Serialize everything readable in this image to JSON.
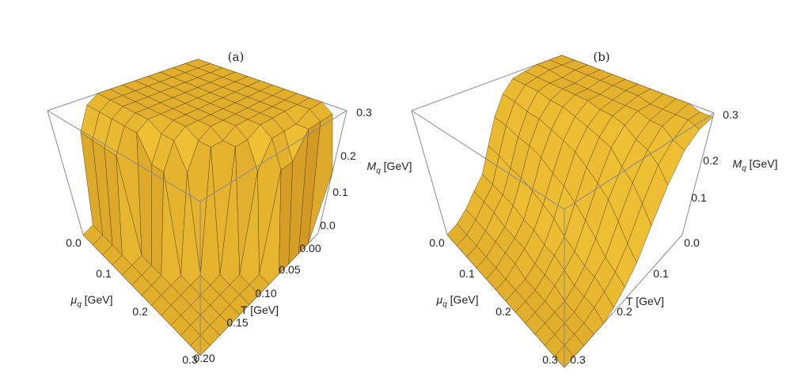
{
  "chart_data": [
    {
      "type": "surface",
      "title": "(a)",
      "xlabel_symbol": "μ",
      "xlabel_sub": "q",
      "xlabel_unit": "[GeV]",
      "ylabel": "T [GeV]",
      "zlabel_symbol": "M",
      "zlabel_sub": "q",
      "zlabel_unit": "[GeV]",
      "xlim": [
        0,
        0.3
      ],
      "ylim": [
        0,
        0.2
      ],
      "zlim": [
        0,
        0.3
      ],
      "xticks": [
        "0.0",
        "0.1",
        "0.2",
        "0.3"
      ],
      "yticks": [
        "0.00",
        "0.05",
        "0.10",
        "0.15",
        "0.20"
      ],
      "zticks": [
        "0.0",
        "0.1",
        "0.2",
        "0.3"
      ],
      "surface_color": "#f5a623",
      "mu_values": [
        0,
        0.025,
        0.05,
        0.075,
        0.1,
        0.125,
        0.15,
        0.175,
        0.2,
        0.225,
        0.25,
        0.275,
        0.3
      ],
      "T_values": [
        0,
        0.0167,
        0.0333,
        0.05,
        0.0667,
        0.0833,
        0.1,
        0.1167,
        0.1333,
        0.15,
        0.1667,
        0.1833,
        0.2
      ],
      "M_grid": [
        [
          0.3,
          0.3,
          0.3,
          0.3,
          0.3,
          0.3,
          0.3,
          0.3,
          0.3,
          0.3,
          0.3,
          0.28,
          0.15
        ],
        [
          0.3,
          0.3,
          0.3,
          0.3,
          0.3,
          0.3,
          0.3,
          0.3,
          0.3,
          0.3,
          0.3,
          0.28,
          0
        ],
        [
          0.3,
          0.3,
          0.3,
          0.3,
          0.3,
          0.3,
          0.3,
          0.3,
          0.3,
          0.3,
          0.28,
          0.28,
          0
        ],
        [
          0.3,
          0.3,
          0.3,
          0.3,
          0.3,
          0.3,
          0.3,
          0.3,
          0.3,
          0.3,
          0.28,
          0.22,
          0
        ],
        [
          0.3,
          0.3,
          0.3,
          0.3,
          0.3,
          0.3,
          0.3,
          0.3,
          0.3,
          0.3,
          0.28,
          0.22,
          0
        ],
        [
          0.3,
          0.3,
          0.3,
          0.3,
          0.3,
          0.3,
          0.3,
          0.3,
          0.3,
          0.28,
          0.22,
          0,
          0
        ],
        [
          0.3,
          0.3,
          0.3,
          0.3,
          0.3,
          0.3,
          0.3,
          0.3,
          0.28,
          0.28,
          0,
          0,
          0
        ],
        [
          0.3,
          0.3,
          0.3,
          0.3,
          0.3,
          0.3,
          0.3,
          0.28,
          0.28,
          0,
          0,
          0,
          0
        ],
        [
          0.3,
          0.3,
          0.3,
          0.3,
          0.3,
          0.28,
          0.28,
          0.22,
          0,
          0,
          0,
          0,
          0
        ],
        [
          0.28,
          0.28,
          0.28,
          0.28,
          0.28,
          0.22,
          0.22,
          0,
          0,
          0,
          0,
          0,
          0
        ],
        [
          0.22,
          0.22,
          0.22,
          0.22,
          0,
          0,
          0,
          0,
          0,
          0,
          0,
          0,
          0
        ],
        [
          0,
          0,
          0,
          0,
          0,
          0,
          0,
          0,
          0,
          0,
          0,
          0,
          0
        ],
        [
          0,
          0,
          0,
          0,
          0,
          0,
          0,
          0,
          0,
          0,
          0,
          0,
          0
        ]
      ]
    },
    {
      "type": "surface",
      "title": "(b)",
      "xlabel_symbol": "μ",
      "xlabel_sub": "q",
      "xlabel_unit": "[GeV]",
      "ylabel": "T [GeV]",
      "zlabel_symbol": "M",
      "zlabel_sub": "q",
      "zlabel_unit": "[GeV]",
      "xlim": [
        0,
        0.3
      ],
      "ylim": [
        0,
        0.3
      ],
      "zlim": [
        0,
        0.3
      ],
      "xticks": [
        "0.0",
        "0.1",
        "0.2",
        "0.3"
      ],
      "yticks": [
        "0.0",
        "0.1",
        "0.2",
        "0.3"
      ],
      "zticks": [
        "0.1",
        "0.2",
        "0.3"
      ],
      "surface_color": "#f5a623",
      "mu_values": [
        0,
        0.025,
        0.05,
        0.075,
        0.1,
        0.125,
        0.15,
        0.175,
        0.2,
        0.225,
        0.25,
        0.275,
        0.3
      ],
      "T_values": [
        0,
        0.025,
        0.05,
        0.075,
        0.1,
        0.125,
        0.15,
        0.175,
        0.2,
        0.225,
        0.25,
        0.275,
        0.3
      ],
      "M_grid": [
        [
          0.3,
          0.3,
          0.3,
          0.3,
          0.3,
          0.3,
          0.3,
          0.3,
          0.3,
          0.3,
          0.3,
          0.29,
          0.29
        ],
        [
          0.3,
          0.3,
          0.3,
          0.3,
          0.3,
          0.3,
          0.3,
          0.3,
          0.29,
          0.29,
          0.29,
          0.29,
          0.28
        ],
        [
          0.3,
          0.3,
          0.29,
          0.29,
          0.29,
          0.29,
          0.29,
          0.29,
          0.29,
          0.28,
          0.28,
          0.26,
          0.25
        ],
        [
          0.29,
          0.29,
          0.29,
          0.29,
          0.29,
          0.29,
          0.28,
          0.28,
          0.27,
          0.25,
          0.24,
          0.22,
          0.19
        ],
        [
          0.28,
          0.28,
          0.28,
          0.27,
          0.27,
          0.26,
          0.25,
          0.24,
          0.23,
          0.2,
          0.18,
          0.15,
          0.12
        ],
        [
          0.24,
          0.24,
          0.23,
          0.23,
          0.22,
          0.21,
          0.2,
          0.18,
          0.16,
          0.14,
          0.11,
          0.08,
          0.06
        ],
        [
          0.18,
          0.18,
          0.17,
          0.17,
          0.16,
          0.14,
          0.13,
          0.11,
          0.09,
          0.07,
          0.05,
          0.04,
          0.03
        ],
        [
          0.11,
          0.11,
          0.1,
          0.1,
          0.09,
          0.08,
          0.07,
          0.05,
          0.04,
          0.03,
          0.03,
          0.02,
          0.01
        ],
        [
          0.05,
          0.05,
          0.05,
          0.05,
          0.04,
          0.04,
          0.03,
          0.03,
          0.02,
          0.01,
          0.01,
          0.01,
          0
        ],
        [
          0.03,
          0.03,
          0.03,
          0.02,
          0.02,
          0.02,
          0.01,
          0.01,
          0.01,
          0,
          0,
          0,
          0
        ],
        [
          0.01,
          0.01,
          0.01,
          0.01,
          0.01,
          0.01,
          0,
          0,
          0,
          0,
          0,
          0,
          0
        ],
        [
          0,
          0,
          0,
          0,
          0,
          0,
          0,
          0,
          0,
          0,
          0,
          0,
          0
        ],
        [
          0,
          0,
          0,
          0,
          0,
          0,
          0,
          0,
          0,
          0,
          0,
          0,
          0
        ]
      ]
    }
  ]
}
